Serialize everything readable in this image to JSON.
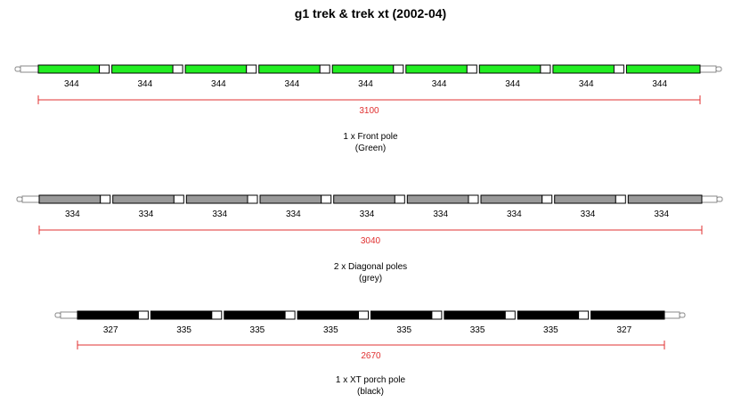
{
  "title": "g1 trek & trek xt (2002-04)",
  "poles": [
    {
      "sections": [
        "344",
        "344",
        "344",
        "344",
        "344",
        "344",
        "344",
        "344",
        "344"
      ],
      "total": "3100",
      "caption_line1": "1 x Front pole",
      "caption_line2": "(Green)",
      "color": "#22ee22"
    },
    {
      "sections": [
        "334",
        "334",
        "334",
        "334",
        "334",
        "334",
        "334",
        "334",
        "334"
      ],
      "total": "3040",
      "caption_line1": "2 x Diagonal poles",
      "caption_line2": "(grey)",
      "color": "#999999"
    },
    {
      "sections": [
        "327",
        "335",
        "335",
        "335",
        "335",
        "335",
        "335",
        "327"
      ],
      "total": "2670",
      "caption_line1": "1 x XT porch pole",
      "caption_line2": "(black)",
      "color": "#000000"
    }
  ],
  "dimension_color": "#e03030"
}
